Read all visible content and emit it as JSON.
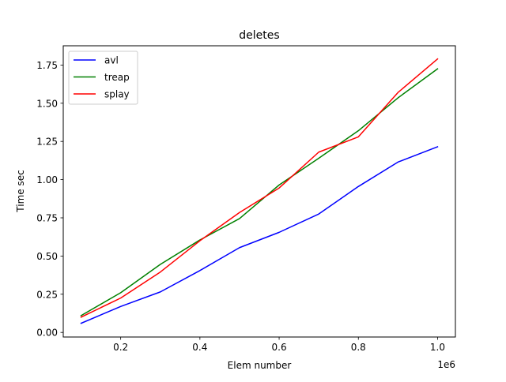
{
  "chart_data": {
    "type": "line",
    "title": "deletes",
    "xlabel": "Elem number",
    "ylabel": "Time sec",
    "x_offset_label": "1e6",
    "x": [
      0.1,
      0.2,
      0.3,
      0.4,
      0.5,
      0.6,
      0.7,
      0.8,
      0.9,
      1.0
    ],
    "xlim": [
      0.055,
      1.045
    ],
    "ylim": [
      -0.03,
      1.876
    ],
    "xticks": [
      0.2,
      0.4,
      0.6,
      0.8,
      1.0
    ],
    "xtick_labels": [
      "0.2",
      "0.4",
      "0.6",
      "0.8",
      "1.0"
    ],
    "yticks": [
      0.0,
      0.25,
      0.5,
      0.75,
      1.0,
      1.25,
      1.5,
      1.75
    ],
    "ytick_labels": [
      "0.00",
      "0.25",
      "0.50",
      "0.75",
      "1.00",
      "1.25",
      "1.50",
      "1.75"
    ],
    "grid": false,
    "legend_position": "top-left",
    "series": [
      {
        "name": "avl",
        "color": "#0000ff",
        "values": [
          0.06,
          0.17,
          0.265,
          0.405,
          0.555,
          0.655,
          0.775,
          0.955,
          1.115,
          1.215
        ]
      },
      {
        "name": "treap",
        "color": "#008000",
        "values": [
          0.11,
          0.26,
          0.445,
          0.605,
          0.745,
          0.965,
          1.14,
          1.32,
          1.535,
          1.725
        ]
      },
      {
        "name": "splay",
        "color": "#ff0000",
        "values": [
          0.1,
          0.225,
          0.395,
          0.6,
          0.785,
          0.945,
          1.18,
          1.28,
          1.57,
          1.79
        ]
      }
    ]
  }
}
